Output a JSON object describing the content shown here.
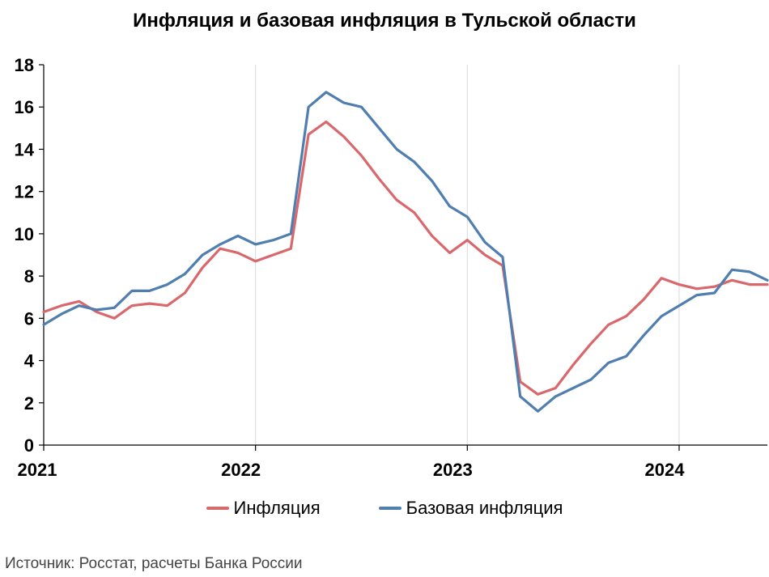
{
  "chart_data": {
    "type": "line",
    "title": "Инфляция и базовая инфляция в Тульской области",
    "xlabel": "",
    "ylabel": "",
    "ylim": [
      0,
      18
    ],
    "yticks": [
      0,
      2,
      4,
      6,
      8,
      10,
      12,
      14,
      16,
      18
    ],
    "x_tick_labels": [
      "2021",
      "2022",
      "2023",
      "2024"
    ],
    "x_months": [
      "2021-01",
      "2021-02",
      "2021-03",
      "2021-04",
      "2021-05",
      "2021-06",
      "2021-07",
      "2021-08",
      "2021-09",
      "2021-10",
      "2021-11",
      "2021-12",
      "2022-01",
      "2022-02",
      "2022-03",
      "2022-04",
      "2022-05",
      "2022-06",
      "2022-07",
      "2022-08",
      "2022-09",
      "2022-10",
      "2022-11",
      "2022-12",
      "2023-01",
      "2023-02",
      "2023-03",
      "2023-04",
      "2023-05",
      "2023-06",
      "2023-07",
      "2023-08",
      "2023-09",
      "2023-10",
      "2023-11",
      "2023-12",
      "2024-01",
      "2024-02",
      "2024-03",
      "2024-04",
      "2024-05",
      "2024-06"
    ],
    "grid": "vertical",
    "legend_position": "bottom",
    "series": [
      {
        "name": "Инфляция",
        "color": "#d9686d",
        "values": [
          6.3,
          6.6,
          6.8,
          6.3,
          6.0,
          6.6,
          6.7,
          6.6,
          7.2,
          8.4,
          9.3,
          9.1,
          8.7,
          9.0,
          9.3,
          14.7,
          15.3,
          14.6,
          13.7,
          12.6,
          11.6,
          11.0,
          9.9,
          9.1,
          9.7,
          9.0,
          8.5,
          3.0,
          2.4,
          2.7,
          3.8,
          4.8,
          5.7,
          6.1,
          6.9,
          7.9,
          7.6,
          7.4,
          7.5,
          7.8,
          7.6,
          7.6
        ]
      },
      {
        "name": "Базовая инфляция",
        "color": "#4f7eaf",
        "values": [
          5.7,
          6.2,
          6.6,
          6.4,
          6.5,
          7.3,
          7.3,
          7.6,
          8.1,
          9.0,
          9.5,
          9.9,
          9.5,
          9.7,
          10.0,
          16.0,
          16.7,
          16.2,
          16.0,
          15.0,
          14.0,
          13.4,
          12.5,
          11.3,
          10.8,
          9.6,
          8.9,
          2.3,
          1.6,
          2.3,
          2.7,
          3.1,
          3.9,
          4.2,
          5.2,
          6.1,
          6.6,
          7.1,
          7.2,
          8.3,
          8.2,
          7.8
        ]
      }
    ]
  },
  "source_note": "Источник: Росстат, расчеты Банка России"
}
